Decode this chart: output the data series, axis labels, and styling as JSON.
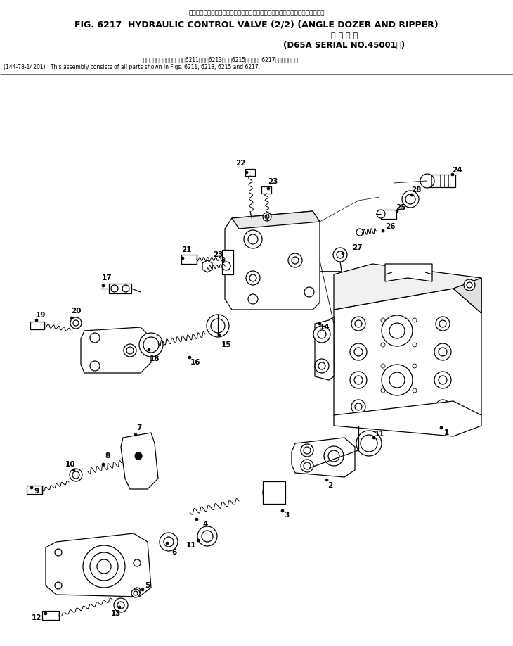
{
  "title_jp": "ハイドロリック　コントロール　バルブ　　アングル　ドーザ　および　リッパ",
  "title_en": "FIG. 6217  HYDRAULIC CONTROL VALVE (2/2) (ANGLE DOZER AND RIPPER)",
  "subtitle_jp": "適 用 号 機",
  "subtitle_en": "(D65A SERIAL NO.45001－)",
  "note_jp": "このアセンブリの構成部品はで6211図、で6213図、で6215図およびで6217図を含みます。",
  "note_en": "(144-78-14201) : This assembly consists of all parts shown in Figs. 6211, 6213, 6215 and 6217.",
  "bg_color": "#ffffff",
  "line_color": "#000000"
}
